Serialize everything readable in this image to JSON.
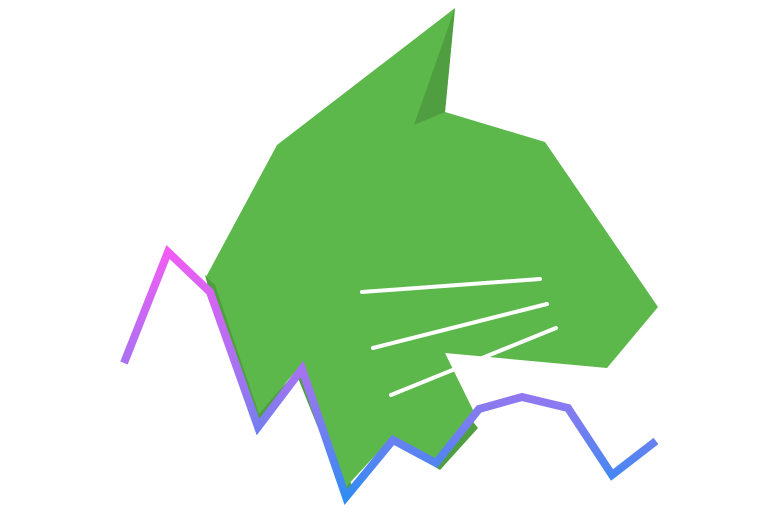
{
  "logo": {
    "icon": "cat-head-logo-icon",
    "colors": {
      "background": "#ffffff",
      "head": "#5cb84a",
      "shadow": "#4f9e40",
      "whiskers": "#ffffff",
      "line_gradient_top": "#f25cf5",
      "line_gradient_mid": "#9a76f0",
      "line_gradient_bottom": "#2f8cf2"
    }
  }
}
